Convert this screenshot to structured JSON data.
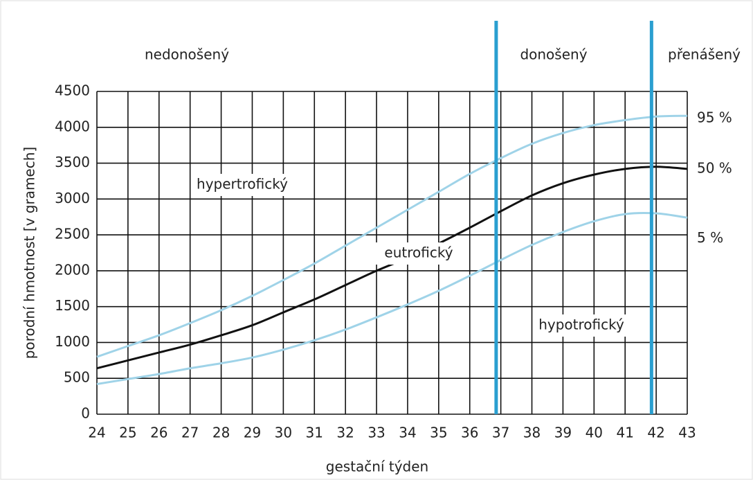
{
  "chart_data": {
    "type": "line",
    "x_label": "gestační týden",
    "y_label": "porodní hmotnost [v gramech]",
    "x": [
      24,
      25,
      26,
      27,
      28,
      29,
      30,
      31,
      32,
      33,
      34,
      35,
      36,
      37,
      38,
      39,
      40,
      41,
      42,
      43
    ],
    "series": [
      {
        "name": "95 %",
        "color": "#9fd3e8",
        "values": [
          800,
          950,
          1100,
          1270,
          1450,
          1650,
          1870,
          2100,
          2350,
          2600,
          2850,
          3100,
          3350,
          3570,
          3770,
          3920,
          4030,
          4100,
          4150,
          4160
        ]
      },
      {
        "name": "50 %",
        "color": "#111111",
        "values": [
          640,
          750,
          860,
          970,
          1100,
          1240,
          1420,
          1600,
          1800,
          2000,
          2180,
          2380,
          2600,
          2830,
          3050,
          3220,
          3340,
          3420,
          3450,
          3420
        ]
      },
      {
        "name": "5 %",
        "color": "#9fd3e8",
        "values": [
          420,
          490,
          560,
          640,
          710,
          790,
          900,
          1030,
          1180,
          1350,
          1530,
          1720,
          1930,
          2150,
          2360,
          2540,
          2690,
          2790,
          2800,
          2740
        ]
      }
    ],
    "xlim": [
      24,
      43
    ],
    "xticks": [
      24,
      25,
      26,
      27,
      28,
      29,
      30,
      31,
      32,
      33,
      34,
      35,
      36,
      37,
      38,
      39,
      40,
      41,
      42,
      43
    ],
    "ylim": [
      0,
      4500
    ],
    "yticks": [
      0,
      500,
      1000,
      1500,
      2000,
      2500,
      3000,
      3500,
      4000,
      4500
    ],
    "grid": true,
    "boundaries": {
      "color": "#2a9fd0",
      "values": [
        36.85,
        41.85
      ]
    },
    "periods": [
      "nedonošený",
      "donošený",
      "přenášený"
    ],
    "regions": [
      "hypertrofický",
      "eutrofický",
      "hypotrofický"
    ]
  }
}
